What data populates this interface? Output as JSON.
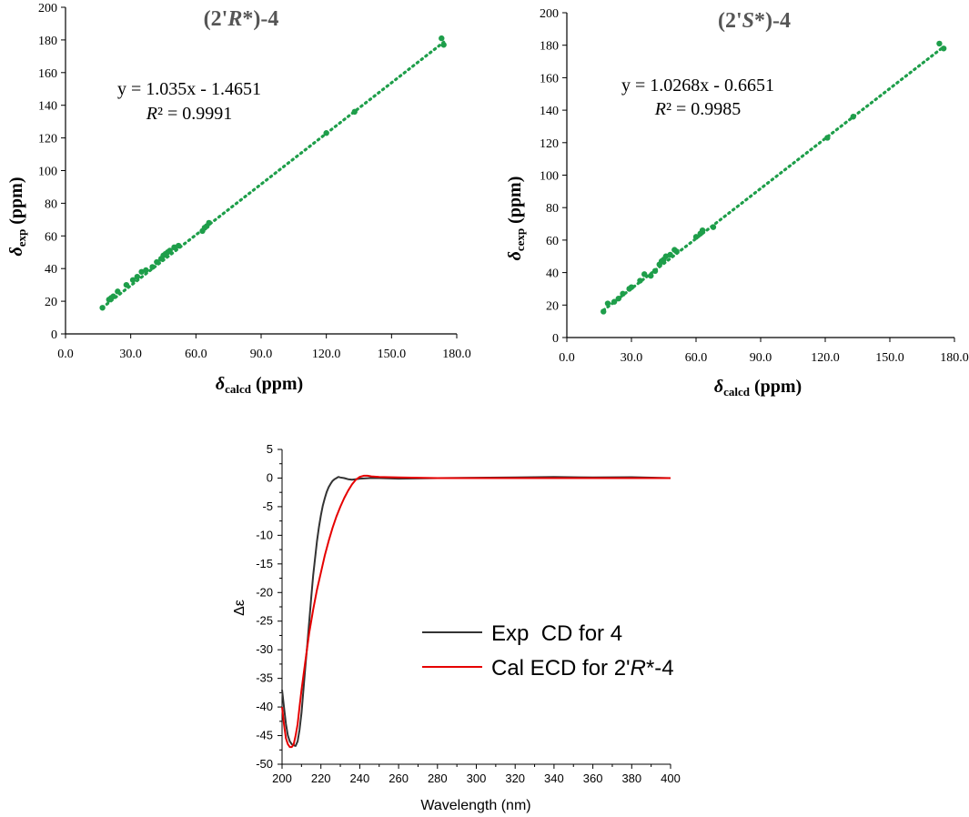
{
  "chart_data": [
    {
      "type": "scatter",
      "id": "nmr_r",
      "title": "(2'R*)-4",
      "title_parts": [
        "(2'",
        "R",
        "*)-4"
      ],
      "xlabel": "δcalcd (ppm)",
      "xlabel_parts": [
        "δ",
        "calcd",
        " (ppm)"
      ],
      "ylabel": "δexp (ppm)",
      "ylabel_parts": [
        "δ",
        "exp",
        " (ppm)"
      ],
      "xlim": [
        0,
        180
      ],
      "ylim": [
        0,
        200
      ],
      "xticks": [
        "0.0",
        "30.0",
        "60.0",
        "90.0",
        "120.0",
        "150.0",
        "180.0"
      ],
      "yticks": [
        "0",
        "20",
        "40",
        "60",
        "80",
        "100",
        "120",
        "140",
        "160",
        "180",
        "200"
      ],
      "equation": "y = 1.035x - 1.4651",
      "r2_label": "R",
      "r2_value": "² = 0.9991",
      "trendline": {
        "slope": 1.035,
        "intercept": -1.4651,
        "x_range": [
          17,
          174
        ]
      },
      "series": [
        {
          "name": "data",
          "color": "#1e9e4a",
          "points": [
            [
              17,
              16
            ],
            [
              20,
              21
            ],
            [
              21,
              22
            ],
            [
              22,
              23
            ],
            [
              24,
              26
            ],
            [
              28,
              30
            ],
            [
              31,
              33
            ],
            [
              33,
              35
            ],
            [
              35,
              38
            ],
            [
              37,
              39
            ],
            [
              40,
              41
            ],
            [
              42,
              44
            ],
            [
              44,
              46
            ],
            [
              45,
              48
            ],
            [
              46,
              49
            ],
            [
              47,
              50
            ],
            [
              48,
              51
            ],
            [
              50,
              53
            ],
            [
              52,
              54
            ],
            [
              63,
              63
            ],
            [
              64,
              65
            ],
            [
              65,
              66
            ],
            [
              66,
              68
            ],
            [
              120,
              123
            ],
            [
              133,
              136
            ],
            [
              173,
              181
            ],
            [
              174,
              177
            ]
          ]
        }
      ]
    },
    {
      "type": "scatter",
      "id": "nmr_s",
      "title": "(2'S*)-4",
      "title_parts": [
        "(2'",
        "S",
        "*)-4"
      ],
      "xlabel": "δcalcd (ppm)",
      "xlabel_parts": [
        "δ",
        "calcd",
        " (ppm)"
      ],
      "ylabel": "δcexp (ppm)",
      "ylabel_parts": [
        "δ",
        "cexp",
        " (ppm)"
      ],
      "xlim": [
        0,
        180
      ],
      "ylim": [
        0,
        200
      ],
      "xticks": [
        "0.0",
        "30.0",
        "60.0",
        "90.0",
        "120.0",
        "150.0",
        "180.0"
      ],
      "yticks": [
        "0",
        "20",
        "40",
        "60",
        "80",
        "100",
        "120",
        "140",
        "160",
        "180",
        "200"
      ],
      "equation": "y = 1.0268x - 0.6651",
      "r2_label": "R",
      "r2_value": "² = 0.9985",
      "trendline": {
        "slope": 1.0268,
        "intercept": -0.6651,
        "x_range": [
          17,
          175
        ]
      },
      "series": [
        {
          "name": "data",
          "color": "#1e9e4a",
          "points": [
            [
              17,
              16
            ],
            [
              19,
              21
            ],
            [
              22,
              22
            ],
            [
              24,
              24
            ],
            [
              26,
              27
            ],
            [
              29,
              30
            ],
            [
              30,
              31
            ],
            [
              34,
              35
            ],
            [
              36,
              39
            ],
            [
              39,
              38
            ],
            [
              41,
              41
            ],
            [
              43,
              45
            ],
            [
              44,
              47
            ],
            [
              45,
              48
            ],
            [
              46,
              50
            ],
            [
              48,
              51
            ],
            [
              50,
              54
            ],
            [
              51,
              53
            ],
            [
              60,
              62
            ],
            [
              62,
              64
            ],
            [
              63,
              66
            ],
            [
              68,
              68
            ],
            [
              121,
              123
            ],
            [
              133,
              136
            ],
            [
              173,
              181
            ],
            [
              175,
              178
            ]
          ]
        }
      ]
    },
    {
      "type": "line",
      "id": "ecd",
      "xlabel": "Wavelength (nm)",
      "ylabel": "Δε",
      "xlim": [
        200,
        400
      ],
      "ylim": [
        -50,
        5
      ],
      "xticks": [
        "200",
        "220",
        "240",
        "260",
        "280",
        "300",
        "320",
        "340",
        "360",
        "380",
        "400"
      ],
      "yticks": [
        "5",
        "0",
        "-5",
        "-10",
        "-15",
        "-20",
        "-25",
        "-30",
        "-35",
        "-40",
        "-45",
        "-50"
      ],
      "legend_position": "center-right",
      "series": [
        {
          "name": "Exp CD for 4",
          "legend_parts": [
            "Exp  CD for 4"
          ],
          "color": "#333333",
          "x": [
            200,
            201,
            202,
            203,
            204,
            205,
            206,
            207,
            208,
            209,
            210,
            211,
            212,
            213,
            214,
            215,
            216,
            217,
            218,
            219,
            220,
            221,
            222,
            223,
            224,
            225,
            226,
            227,
            228,
            229,
            230,
            232,
            234,
            236,
            238,
            240,
            245,
            250,
            260,
            280,
            300,
            320,
            340,
            360,
            380,
            400
          ],
          "y": [
            -37,
            -40,
            -43,
            -45,
            -46,
            -46.5,
            -46.7,
            -46.8,
            -46,
            -44,
            -41,
            -37,
            -33,
            -29,
            -25,
            -21,
            -17,
            -14,
            -11,
            -8.5,
            -6.5,
            -4.8,
            -3.5,
            -2.4,
            -1.6,
            -1.0,
            -0.5,
            -0.2,
            0,
            0.2,
            0.1,
            0,
            -0.2,
            -0.3,
            -0.2,
            -0.1,
            0,
            0,
            -0.1,
            0,
            0.05,
            0.1,
            0.2,
            0.1,
            0.15,
            0
          ]
        },
        {
          "name": "Cal ECD for 2'R*-4",
          "legend_parts": [
            "Cal ECD for 2'",
            "R",
            "*-4"
          ],
          "color": "#e60000",
          "x": [
            200,
            201,
            202,
            203,
            204,
            205,
            206,
            207,
            208,
            209,
            210,
            212,
            214,
            216,
            218,
            220,
            222,
            224,
            226,
            228,
            230,
            232,
            234,
            236,
            238,
            240,
            242,
            244,
            246,
            250,
            260,
            280,
            300,
            320,
            340,
            360,
            380,
            400
          ],
          "y": [
            -40,
            -43,
            -45.5,
            -46.5,
            -47,
            -47,
            -46.5,
            -45,
            -43,
            -40,
            -37,
            -32,
            -27,
            -23,
            -19.5,
            -16.5,
            -13.5,
            -11,
            -8.7,
            -6.7,
            -5,
            -3.5,
            -2.2,
            -1.1,
            -0.3,
            0.2,
            0.4,
            0.4,
            0.3,
            0.2,
            0.1,
            0,
            0,
            0,
            0,
            0,
            0,
            0
          ]
        }
      ]
    }
  ]
}
